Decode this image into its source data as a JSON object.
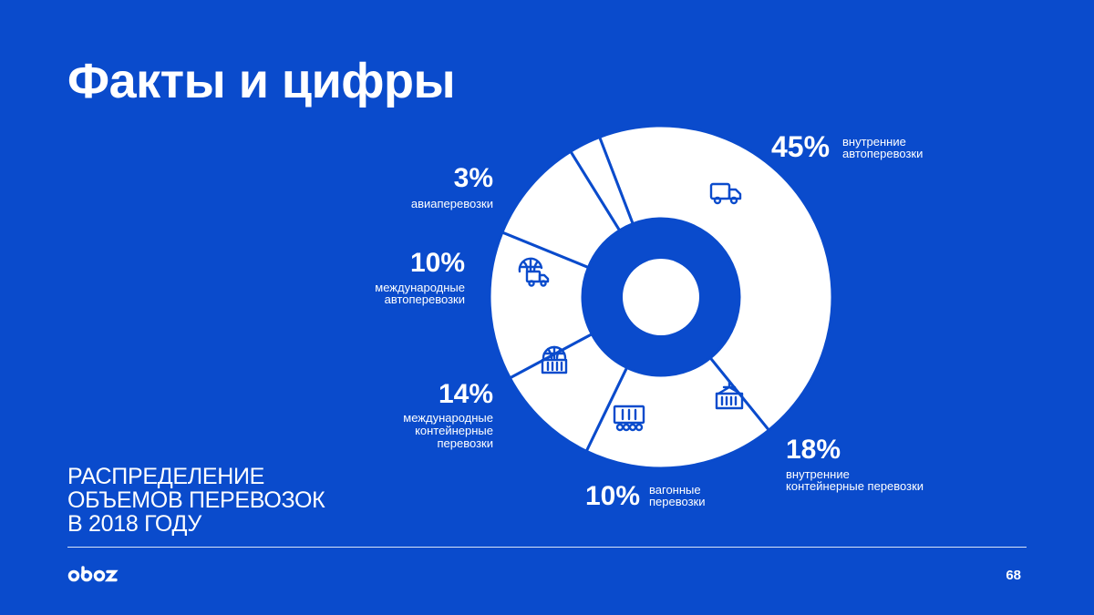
{
  "header": {
    "title": "Факты и цифры"
  },
  "caption": {
    "lines": [
      "РАСПРЕДЕЛЕНИЕ",
      "ОБЪЕМОВ ПЕРЕВОЗОК",
      "В 2018 ГОДУ"
    ]
  },
  "footer": {
    "logo_text": "oboz",
    "page_number": "68"
  },
  "colors": {
    "background": "#0a4bcc",
    "slice": "#ffffff",
    "icon": "#0a4bcc"
  },
  "chart_data": {
    "type": "pie",
    "variant": "donut",
    "title": "",
    "slices": [
      {
        "label": "внутренние автоперевозки",
        "value": 45,
        "value_label": "45%",
        "text_lines": [
          "внутренние",
          "автоперевозки"
        ],
        "icon": "truck-icon"
      },
      {
        "label": "внутренние контейнерные перевозки",
        "value": 18,
        "value_label": "18%",
        "text_lines": [
          "внутренние",
          "контейнерные перевозки"
        ],
        "icon": "container-crane-icon"
      },
      {
        "label": "вагонные перевозки",
        "value": 10,
        "value_label": "10%",
        "text_lines": [
          "вагонные",
          "перевозки"
        ],
        "icon": "railcar-icon"
      },
      {
        "label": "международные контейнерные перевозки",
        "value": 14,
        "value_label": "14%",
        "text_lines": [
          "международные",
          "контейнерные",
          "перевозки"
        ],
        "icon": "globe-container-icon"
      },
      {
        "label": "международные автоперевозки",
        "value": 10,
        "value_label": "10%",
        "text_lines": [
          "международные",
          "автоперевозки"
        ],
        "icon": "globe-truck-icon"
      },
      {
        "label": "авиаперевозки",
        "value": 3,
        "value_label": "3%",
        "text_lines": [
          "авиаперевозки"
        ],
        "icon": ""
      }
    ]
  }
}
